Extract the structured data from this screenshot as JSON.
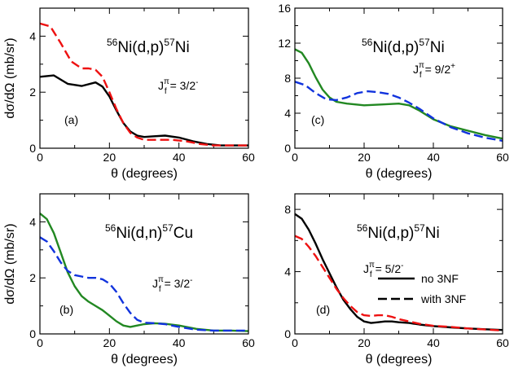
{
  "colors": {
    "black": "#000000",
    "red": "#ee1111",
    "blue": "#1133dd",
    "green": "#228822"
  },
  "chart_data": [
    {
      "type": "line",
      "panel_label": "(a)",
      "reaction": {
        "pre": "56",
        "mid": "Ni(d,p)",
        "post": "57",
        "end": "Ni"
      },
      "jlabel": {
        "J": "J",
        "sub": "f",
        "sup": "π",
        "eq": " = 3/2",
        "parity": "-"
      },
      "xlabel": "θ (degrees)",
      "ylabel": "dσ/dΩ (mb/sr)",
      "xlim": [
        0,
        60
      ],
      "ylim": [
        0,
        5
      ],
      "xticks": [
        0,
        20,
        40,
        60
      ],
      "yticks": [
        0,
        2,
        4
      ],
      "show_xtick_labels": true,
      "show_ytick_labels": true,
      "series": [
        {
          "color": "#000000",
          "dash": false,
          "x": [
            0,
            4,
            8,
            12,
            16,
            18,
            20,
            22,
            24,
            26,
            28,
            30,
            32,
            36,
            40,
            44,
            48,
            52,
            56,
            60
          ],
          "y": [
            2.55,
            2.6,
            2.3,
            2.22,
            2.35,
            2.2,
            1.85,
            1.35,
            0.9,
            0.6,
            0.45,
            0.4,
            0.42,
            0.45,
            0.38,
            0.25,
            0.15,
            0.1,
            0.1,
            0.1
          ]
        },
        {
          "color": "#ee1111",
          "dash": true,
          "x": [
            0,
            3,
            6,
            9,
            12,
            14,
            16,
            18,
            20,
            22,
            24,
            26,
            28,
            30,
            34,
            38,
            42,
            46,
            50,
            55,
            60
          ],
          "y": [
            4.45,
            4.35,
            3.75,
            3.1,
            2.85,
            2.85,
            2.8,
            2.55,
            2.0,
            1.4,
            0.9,
            0.55,
            0.38,
            0.3,
            0.3,
            0.3,
            0.25,
            0.15,
            0.1,
            0.1,
            0.1
          ]
        }
      ]
    },
    {
      "type": "line",
      "panel_label": "(c)",
      "reaction": {
        "pre": "56",
        "mid": "Ni(d,p)",
        "post": "57",
        "end": "Ni"
      },
      "jlabel": {
        "J": "J",
        "sub": "f",
        "sup": "π",
        "eq": " = 9/2",
        "parity": "+"
      },
      "xlabel": "θ (degrees)",
      "ylabel": "",
      "xlim": [
        0,
        60
      ],
      "ylim": [
        0,
        16
      ],
      "xticks": [
        0,
        20,
        40,
        60
      ],
      "yticks": [
        0,
        4,
        8,
        12,
        16
      ],
      "show_xtick_labels": true,
      "show_ytick_labels": true,
      "series": [
        {
          "color": "#228822",
          "dash": false,
          "x": [
            0,
            2,
            4,
            6,
            8,
            10,
            12,
            15,
            20,
            25,
            30,
            33,
            36,
            40,
            45,
            50,
            55,
            60
          ],
          "y": [
            11.3,
            10.9,
            9.7,
            8.1,
            6.7,
            5.8,
            5.3,
            5.1,
            4.9,
            5.0,
            5.1,
            4.9,
            4.3,
            3.3,
            2.5,
            2.0,
            1.5,
            1.1
          ]
        },
        {
          "color": "#1133dd",
          "dash": true,
          "x": [
            0,
            3,
            6,
            9,
            12,
            15,
            18,
            21,
            24,
            27,
            30,
            33,
            36,
            40,
            45,
            50,
            55,
            60
          ],
          "y": [
            7.6,
            7.2,
            6.3,
            5.6,
            5.5,
            5.8,
            6.3,
            6.5,
            6.4,
            6.2,
            5.8,
            5.2,
            4.5,
            3.4,
            2.4,
            1.7,
            1.2,
            0.85
          ]
        }
      ]
    },
    {
      "type": "line",
      "panel_label": "(b)",
      "reaction": {
        "pre": "56",
        "mid": "Ni(d,n)",
        "post": "57",
        "end": "Cu"
      },
      "jlabel": {
        "J": "J",
        "sub": "f",
        "sup": "π",
        "eq": " = 3/2",
        "parity": "-"
      },
      "xlabel": "θ (degrees)",
      "ylabel": "dσ/dΩ (mb/sr)",
      "xlim": [
        0,
        60
      ],
      "ylim": [
        0,
        5
      ],
      "xticks": [
        0,
        20,
        40,
        60
      ],
      "yticks": [
        0,
        2,
        4
      ],
      "show_xtick_labels": true,
      "show_ytick_labels": true,
      "series": [
        {
          "color": "#228822",
          "dash": false,
          "x": [
            0,
            2,
            4,
            6,
            8,
            10,
            12,
            14,
            16,
            18,
            20,
            22,
            24,
            26,
            28,
            30,
            33,
            36,
            40,
            45,
            50,
            55,
            60
          ],
          "y": [
            4.3,
            4.1,
            3.6,
            2.9,
            2.2,
            1.7,
            1.35,
            1.15,
            1.0,
            0.85,
            0.65,
            0.45,
            0.3,
            0.25,
            0.3,
            0.35,
            0.38,
            0.36,
            0.3,
            0.18,
            0.12,
            0.12,
            0.1
          ]
        },
        {
          "color": "#1133dd",
          "dash": true,
          "x": [
            0,
            2,
            4,
            6,
            8,
            10,
            12,
            14,
            16,
            18,
            20,
            22,
            24,
            26,
            28,
            30,
            33,
            36,
            40,
            45,
            50,
            55,
            60
          ],
          "y": [
            3.45,
            3.3,
            2.95,
            2.55,
            2.25,
            2.1,
            2.05,
            2.0,
            2.0,
            1.95,
            1.8,
            1.5,
            1.1,
            0.75,
            0.5,
            0.4,
            0.38,
            0.35,
            0.25,
            0.15,
            0.12,
            0.12,
            0.12
          ]
        }
      ]
    },
    {
      "type": "line",
      "panel_label": "(d)",
      "reaction": {
        "pre": "56",
        "mid": "Ni(d,p)",
        "post": "57",
        "end": "Ni"
      },
      "jlabel": {
        "J": "J",
        "sub": "f",
        "sup": "π",
        "eq": " = 5/2",
        "parity": "-"
      },
      "xlabel": "θ (degrees)",
      "ylabel": "",
      "xlim": [
        0,
        60
      ],
      "ylim": [
        0,
        9
      ],
      "xticks": [
        0,
        20,
        40,
        60
      ],
      "yticks": [
        0,
        4,
        8
      ],
      "show_xtick_labels": true,
      "show_ytick_labels": true,
      "legend": [
        {
          "label": "no 3NF",
          "color": "#000000",
          "dash": false
        },
        {
          "label": "with 3NF",
          "color": "#000000",
          "dash": true
        }
      ],
      "series": [
        {
          "color": "#000000",
          "dash": false,
          "x": [
            0,
            2,
            4,
            6,
            8,
            10,
            12,
            14,
            16,
            18,
            20,
            22,
            24,
            26,
            28,
            30,
            33,
            36,
            40,
            45,
            50,
            55,
            60
          ],
          "y": [
            7.7,
            7.4,
            6.7,
            5.8,
            4.8,
            3.9,
            3.0,
            2.2,
            1.6,
            1.1,
            0.8,
            0.7,
            0.75,
            0.8,
            0.8,
            0.75,
            0.7,
            0.6,
            0.5,
            0.42,
            0.35,
            0.3,
            0.25
          ]
        },
        {
          "color": "#ee1111",
          "dash": true,
          "x": [
            0,
            2,
            4,
            6,
            8,
            10,
            12,
            14,
            16,
            18,
            20,
            22,
            24,
            26,
            28,
            30,
            33,
            36,
            40,
            45,
            50,
            55,
            60
          ],
          "y": [
            6.3,
            6.1,
            5.6,
            5.0,
            4.3,
            3.6,
            2.9,
            2.3,
            1.8,
            1.4,
            1.2,
            1.15,
            1.2,
            1.2,
            1.1,
            0.95,
            0.8,
            0.65,
            0.52,
            0.45,
            0.35,
            0.28,
            0.22
          ]
        }
      ]
    }
  ]
}
